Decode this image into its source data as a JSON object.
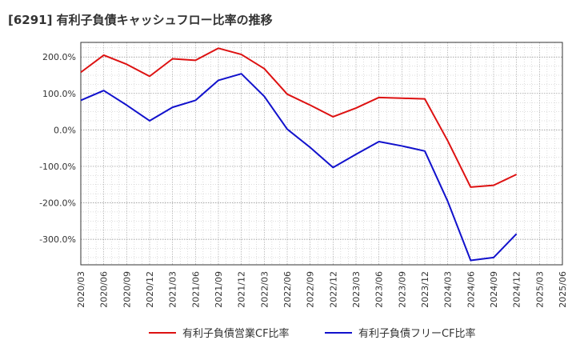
{
  "chart_data": {
    "type": "line",
    "title": "[6291]  有利子負債キャッシュフロー比率の推移",
    "xlabel": "",
    "ylabel": "",
    "ylim": [
      -370,
      240
    ],
    "yticks": [
      -300,
      -200,
      -100,
      0,
      100,
      200
    ],
    "ytick_labels": [
      "-300.0%",
      "-200.0%",
      "-100.0%",
      "0.0%",
      "100.0%",
      "200.0%"
    ],
    "categories": [
      "2020/03",
      "2020/06",
      "2020/09",
      "2020/12",
      "2021/03",
      "2021/06",
      "2021/09",
      "2021/12",
      "2022/03",
      "2022/06",
      "2022/09",
      "2022/12",
      "2023/03",
      "2023/06",
      "2023/09",
      "2023/12",
      "2024/03",
      "2024/06",
      "2024/09",
      "2024/12",
      "2025/03",
      "2025/06"
    ],
    "grid": true,
    "legend_position": "bottom",
    "series": [
      {
        "name": "有利子負債営業CF比率",
        "color": "#dd1111",
        "values": [
          158,
          205,
          180,
          147,
          195,
          191,
          224,
          207,
          168,
          98,
          68,
          36,
          60,
          89,
          87,
          85,
          -30,
          -157,
          -152,
          -122,
          null,
          null
        ]
      },
      {
        "name": "有利子負債フリーCF比率",
        "color": "#1111cc",
        "values": [
          81,
          108,
          68,
          25,
          62,
          81,
          136,
          154,
          92,
          2,
          -48,
          -103,
          -67,
          -32,
          -44,
          -58,
          -196,
          -358,
          -350,
          -285,
          null,
          null
        ]
      }
    ]
  }
}
